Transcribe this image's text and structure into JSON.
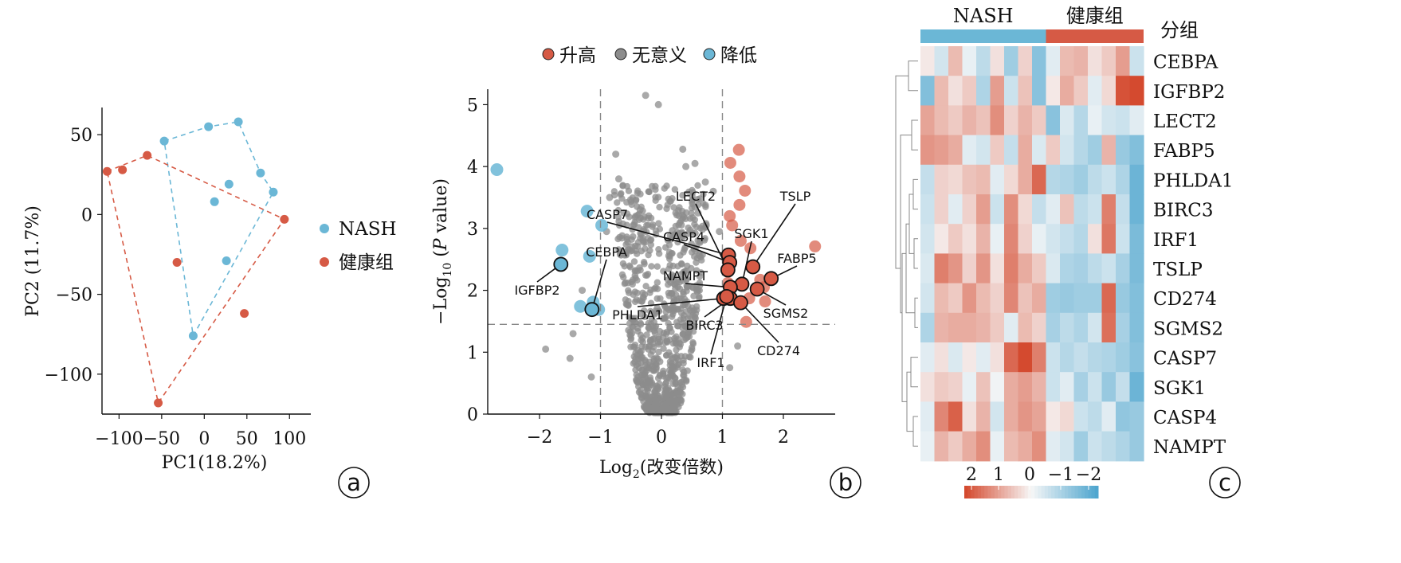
{
  "panels": {
    "a": "a",
    "b": "b",
    "c": "c"
  },
  "chart_data": [
    {
      "type": "scatter",
      "xlabel": "PC1(18.2%)",
      "ylabel": "PC2 (11.7%)",
      "xlim": [
        -120,
        125
      ],
      "ylim": [
        -125,
        67
      ],
      "xticks": [
        -100,
        -50,
        0,
        50,
        100
      ],
      "yticks": [
        50,
        0,
        -50,
        -100
      ],
      "xtick_labels": [
        "−100",
        "−50",
        "0",
        "50",
        "100"
      ],
      "ytick_labels": [
        "50",
        "0",
        "−50",
        "−100"
      ],
      "legend_position": "right",
      "series": [
        {
          "name": "NASH",
          "color": "#6bb7d6",
          "points": [
            [
              -47,
              46
            ],
            [
              5,
              55
            ],
            [
              40,
              58
            ],
            [
              29,
              19
            ],
            [
              66,
              26
            ],
            [
              81,
              14
            ],
            [
              12,
              8
            ],
            [
              26,
              -29
            ],
            [
              -13,
              -76
            ]
          ],
          "hull": [
            [
              -47,
              46
            ],
            [
              5,
              55
            ],
            [
              40,
              58
            ],
            [
              66,
              26
            ],
            [
              81,
              14
            ],
            [
              -13,
              -76
            ]
          ]
        },
        {
          "name": "健康组",
          "color": "#d65a45",
          "points": [
            [
              -114,
              27
            ],
            [
              -96,
              28
            ],
            [
              -67,
              37
            ],
            [
              94,
              -3
            ],
            [
              -32,
              -30
            ],
            [
              47,
              -62
            ],
            [
              -54,
              -118
            ]
          ],
          "hull": [
            [
              -114,
              27
            ],
            [
              -67,
              37
            ],
            [
              94,
              -3
            ],
            [
              -54,
              -118
            ]
          ]
        }
      ]
    },
    {
      "type": "scatter",
      "xlabel": "Log2(改变倍数)",
      "ylabel": "−Log10 (P value)",
      "xlim": [
        -2.85,
        2.85
      ],
      "ylim": [
        0,
        5.25
      ],
      "xticks": [
        -2,
        -1,
        0,
        1,
        2
      ],
      "yticks": [
        0,
        1,
        2,
        3,
        4,
        5
      ],
      "xtick_labels": [
        "−2",
        "−1",
        "0",
        "1",
        "2"
      ],
      "ytick_labels": [
        "0",
        "1",
        "2",
        "3",
        "4",
        "5"
      ],
      "thresholds": {
        "x": [
          -1,
          1
        ],
        "y": 1.45
      },
      "legend": [
        {
          "name": "升高",
          "color": "#d65a45"
        },
        {
          "name": "无意义",
          "color": "#8c8c8c"
        },
        {
          "name": "降低",
          "color": "#6bb7d6"
        }
      ],
      "legend_position": "top",
      "down_points": [
        [
          -2.7,
          3.95
        ],
        [
          -1.22,
          3.28
        ],
        [
          -0.98,
          3.05
        ],
        [
          -1.63,
          2.65
        ],
        [
          -1.18,
          2.55
        ],
        [
          -1.33,
          1.74
        ],
        [
          -1.12,
          1.81
        ],
        [
          -1.03,
          1.69
        ]
      ],
      "up_points": [
        [
          1.27,
          4.27
        ],
        [
          1.13,
          4.06
        ],
        [
          1.28,
          3.84
        ],
        [
          1.37,
          3.61
        ],
        [
          1.28,
          3.38
        ],
        [
          1.12,
          3.2
        ],
        [
          1.16,
          3.05
        ],
        [
          1.3,
          2.8
        ],
        [
          1.46,
          2.68
        ],
        [
          2.52,
          2.71
        ],
        [
          1.62,
          2.17
        ],
        [
          1.68,
          2.05
        ],
        [
          1.44,
          1.87
        ],
        [
          1.7,
          1.82
        ],
        [
          1.39,
          1.49
        ],
        [
          1.09,
          2.12
        ]
      ],
      "nonsig_extra": [
        [
          -0.26,
          5.15
        ],
        [
          -0.05,
          5.0
        ],
        [
          0.35,
          4.28
        ],
        [
          0.4,
          4.0
        ],
        [
          0.55,
          4.05
        ],
        [
          -0.75,
          4.2
        ],
        [
          -0.7,
          3.8
        ],
        [
          -0.85,
          3.5
        ],
        [
          0.72,
          3.75
        ],
        [
          0.85,
          3.6
        ],
        [
          -1.9,
          1.05
        ],
        [
          -1.5,
          0.9
        ],
        [
          -1.45,
          1.3
        ],
        [
          -1.15,
          0.6
        ],
        [
          1.12,
          0.75
        ],
        [
          1.25,
          1.1
        ],
        [
          -0.35,
          3.3
        ],
        [
          0.6,
          3.25
        ],
        [
          -1.3,
          2.0
        ],
        [
          -0.9,
          2.95
        ],
        [
          0.95,
          2.95
        ]
      ],
      "labeled_genes": [
        {
          "name": "IGFBP2",
          "x": -1.65,
          "y": 2.42,
          "dir": "down"
        },
        {
          "name": "CEBPA",
          "x": -1.14,
          "y": 1.69,
          "dir": "down"
        },
        {
          "name": "CASP7",
          "x": 1.1,
          "y": 2.57,
          "dir": "up"
        },
        {
          "name": "CASP4",
          "x": 1.12,
          "y": 2.45,
          "dir": "up"
        },
        {
          "name": "LECT2",
          "x": 1.09,
          "y": 2.33,
          "dir": "up"
        },
        {
          "name": "TSLP",
          "x": 1.5,
          "y": 2.38,
          "dir": "up"
        },
        {
          "name": "SGK1",
          "x": 1.32,
          "y": 2.1,
          "dir": "up"
        },
        {
          "name": "FABP5",
          "x": 1.8,
          "y": 2.19,
          "dir": "up"
        },
        {
          "name": "NAMPT",
          "x": 1.13,
          "y": 2.05,
          "dir": "up"
        },
        {
          "name": "SGMS2",
          "x": 1.57,
          "y": 2.02,
          "dir": "up"
        },
        {
          "name": "PHLDA1",
          "x": 1.02,
          "y": 1.87,
          "dir": "up"
        },
        {
          "name": "BIRC3",
          "x": 1.13,
          "y": 1.87,
          "dir": "up"
        },
        {
          "name": "CD274",
          "x": 1.3,
          "y": 1.8,
          "dir": "up"
        },
        {
          "name": "IRF1",
          "x": 1.07,
          "y": 1.9,
          "dir": "up"
        }
      ]
    },
    {
      "type": "heatmap",
      "group_title": "分组",
      "groups": [
        {
          "name": "NASH",
          "n": 9,
          "color": "#6bb7d6"
        },
        {
          "name": "健康组",
          "n": 7,
          "color": "#d65a45"
        }
      ],
      "rows": [
        "CEBPA",
        "IGFBP2",
        "LECT2",
        "FABP5",
        "PHLDA1",
        "BIRC3",
        "IRF1",
        "TSLP",
        "CD274",
        "SGMS2",
        "CASP7",
        "SGK1",
        "CASP4",
        "NAMPT"
      ],
      "values": [
        [
          0.2,
          -0.5,
          0.8,
          -0.2,
          -0.8,
          0.3,
          -1.2,
          0.5,
          -1.5,
          -0.3,
          0.8,
          0.9,
          0.3,
          0.6,
          1.2,
          -0.6
        ],
        [
          -1.6,
          0.8,
          0.3,
          0.6,
          -1.0,
          1.2,
          -0.6,
          0.7,
          -1.5,
          0.2,
          1.0,
          0.6,
          -0.3,
          0.4,
          2.2,
          2.5
        ],
        [
          1.1,
          0.8,
          0.6,
          0.9,
          0.7,
          1.4,
          0.5,
          0.9,
          0.6,
          -1.5,
          -0.4,
          -0.9,
          -0.2,
          -0.5,
          -0.6,
          -0.3
        ],
        [
          1.3,
          1.2,
          1.0,
          -0.3,
          -0.5,
          0.6,
          -0.7,
          1.0,
          -0.4,
          0.6,
          -0.5,
          -0.9,
          -1.2,
          0.9,
          -1.3,
          -1.6
        ],
        [
          -0.7,
          0.5,
          0.4,
          0.7,
          0.8,
          -0.3,
          0.4,
          1.0,
          1.9,
          -0.9,
          -1.0,
          -1.2,
          -0.8,
          -0.6,
          -1.0,
          -1.9
        ],
        [
          -0.6,
          0.5,
          -0.3,
          0.5,
          1.2,
          -0.6,
          1.4,
          0.4,
          -0.7,
          -0.3,
          0.7,
          -0.8,
          -0.6,
          1.6,
          -0.7,
          -1.9
        ],
        [
          -0.5,
          0.2,
          0.6,
          0.3,
          0.9,
          -0.2,
          1.5,
          0.5,
          -0.2,
          -0.5,
          -0.7,
          -0.9,
          0.3,
          1.7,
          -0.6,
          -1.7
        ],
        [
          -0.4,
          1.6,
          1.3,
          0.5,
          1.3,
          0.3,
          1.6,
          1.0,
          0.6,
          -0.4,
          -1.0,
          -1.1,
          -0.8,
          -0.6,
          -1.1,
          -1.7
        ],
        [
          -0.5,
          0.8,
          0.6,
          1.3,
          0.8,
          0.5,
          1.5,
          0.7,
          1.0,
          -1.2,
          -1.3,
          -1.2,
          -1.2,
          1.9,
          -1.3,
          -1.6
        ],
        [
          -1.0,
          0.9,
          1.0,
          1.0,
          0.9,
          0.6,
          -0.3,
          0.8,
          0.5,
          -1.1,
          -0.8,
          -1.0,
          -0.5,
          1.8,
          -1.1,
          -1.6
        ],
        [
          -0.3,
          0.3,
          -0.4,
          0.2,
          -0.3,
          0.3,
          1.9,
          2.3,
          1.6,
          -0.6,
          -0.9,
          -0.7,
          -0.9,
          -1.0,
          -1.2,
          -1.5
        ],
        [
          0.3,
          0.6,
          0.5,
          -0.2,
          0.7,
          -0.1,
          1.0,
          1.2,
          0.9,
          -0.6,
          -0.3,
          -1.1,
          -0.6,
          -1.3,
          -0.7,
          -1.9
        ],
        [
          -0.3,
          1.5,
          2.0,
          0.3,
          0.9,
          -0.5,
          1.0,
          1.3,
          1.1,
          0.2,
          0.4,
          -0.6,
          -0.8,
          -0.3,
          -1.4,
          -1.3
        ],
        [
          -0.2,
          0.9,
          0.6,
          1.0,
          1.4,
          -0.2,
          0.8,
          1.0,
          1.4,
          -0.3,
          -0.5,
          -1.2,
          -0.6,
          -0.8,
          -1.0,
          -1.3
        ]
      ],
      "scale_ticks": [
        "2",
        "1",
        "0",
        "−1",
        "−2"
      ],
      "color_low": "#4fa6cf",
      "color_mid": "#f7f7f7",
      "color_high": "#d44a2f"
    }
  ]
}
